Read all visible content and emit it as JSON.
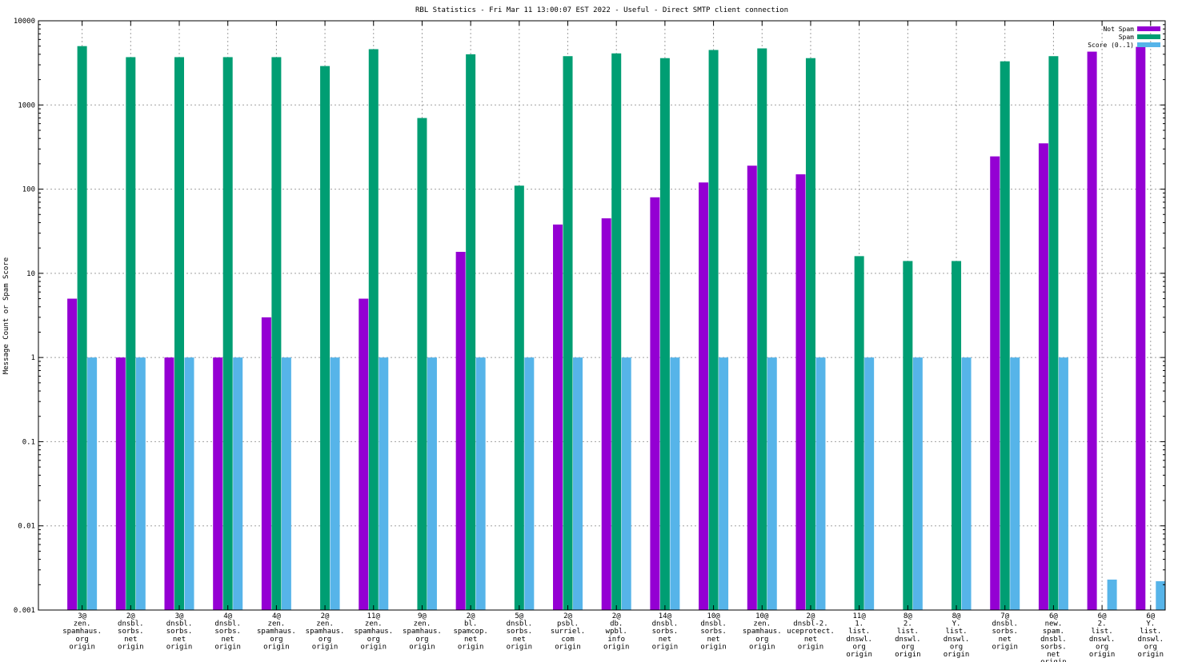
{
  "chart_data": {
    "type": "bar",
    "title": "RBL Statistics - Fri Mar 11 13:00:07 EST 2022 - Useful - Direct SMTP client connection",
    "ylabel": "Message Count or Spam Score",
    "xlabel": "",
    "yscale": "log",
    "ylim": [
      0.001,
      10000
    ],
    "yticks": [
      "0.001",
      "0.01",
      "0.1",
      "1",
      "10",
      "100",
      "1000",
      "10000"
    ],
    "grid": true,
    "legend_position": "top-right",
    "categories": [
      [
        "3@",
        "zen.",
        "spamhaus.",
        "org",
        "origin"
      ],
      [
        "2@",
        "dnsbl.",
        "sorbs.",
        "net",
        "origin"
      ],
      [
        "3@",
        "dnsbl.",
        "sorbs.",
        "net",
        "origin"
      ],
      [
        "4@",
        "dnsbl.",
        "sorbs.",
        "net",
        "origin"
      ],
      [
        "4@",
        "zen.",
        "spamhaus.",
        "org",
        "origin"
      ],
      [
        "2@",
        "zen.",
        "spamhaus.",
        "org",
        "origin"
      ],
      [
        "11@",
        "zen.",
        "spamhaus.",
        "org",
        "origin"
      ],
      [
        "9@",
        "zen.",
        "spamhaus.",
        "org",
        "origin"
      ],
      [
        "2@",
        "bl.",
        "spamcop.",
        "net",
        "origin"
      ],
      [
        "5@",
        "dnsbl.",
        "sorbs.",
        "net",
        "origin"
      ],
      [
        "2@",
        "psbl.",
        "surriel.",
        "com",
        "origin"
      ],
      [
        "2@",
        "db.",
        "wpbl.",
        "info",
        "origin"
      ],
      [
        "14@",
        "dnsbl.",
        "sorbs.",
        "net",
        "origin"
      ],
      [
        "10@",
        "dnsbl.",
        "sorbs.",
        "net",
        "origin"
      ],
      [
        "10@",
        "zen.",
        "spamhaus.",
        "org",
        "origin"
      ],
      [
        "2@",
        "dnsbl-2.",
        "uceprotect.",
        "net",
        "origin"
      ],
      [
        "11@",
        "1.",
        "list.",
        "dnswl.",
        "org",
        "origin"
      ],
      [
        "8@",
        "2.",
        "list.",
        "dnswl.",
        "org",
        "origin"
      ],
      [
        "8@",
        "Y.",
        "list.",
        "dnswl.",
        "org",
        "origin"
      ],
      [
        "7@",
        "dnsbl.",
        "sorbs.",
        "net",
        "origin"
      ],
      [
        "6@",
        "new.",
        "spam.",
        "dnsbl.",
        "sorbs.",
        "net",
        "origin"
      ],
      [
        "6@",
        "2.",
        "list.",
        "dnswl.",
        "org",
        "origin"
      ],
      [
        "6@",
        "Y.",
        "list.",
        "dnswl.",
        "org",
        "origin"
      ]
    ],
    "series": [
      {
        "name": "Not Spam",
        "color": "#9400d3",
        "values": [
          5,
          1,
          1,
          1,
          3,
          null,
          5,
          null,
          18,
          null,
          38,
          45,
          80,
          120,
          190,
          150,
          null,
          null,
          null,
          245,
          350,
          4300,
          4900
        ]
      },
      {
        "name": "Spam",
        "color": "#009e73",
        "values": [
          5000,
          3700,
          3700,
          3700,
          3700,
          2900,
          4600,
          700,
          4000,
          110,
          3800,
          4100,
          3600,
          4500,
          4700,
          3600,
          16,
          14,
          14,
          3300,
          3800,
          null,
          null
        ]
      },
      {
        "name": "Score (0..1)",
        "color": "#56b4e9",
        "values": [
          1,
          1,
          1,
          1,
          1,
          1,
          1,
          1,
          1,
          1,
          1,
          1,
          1,
          1,
          1,
          1,
          1,
          1,
          1,
          1,
          1,
          0.0023,
          0.0022
        ]
      }
    ]
  }
}
